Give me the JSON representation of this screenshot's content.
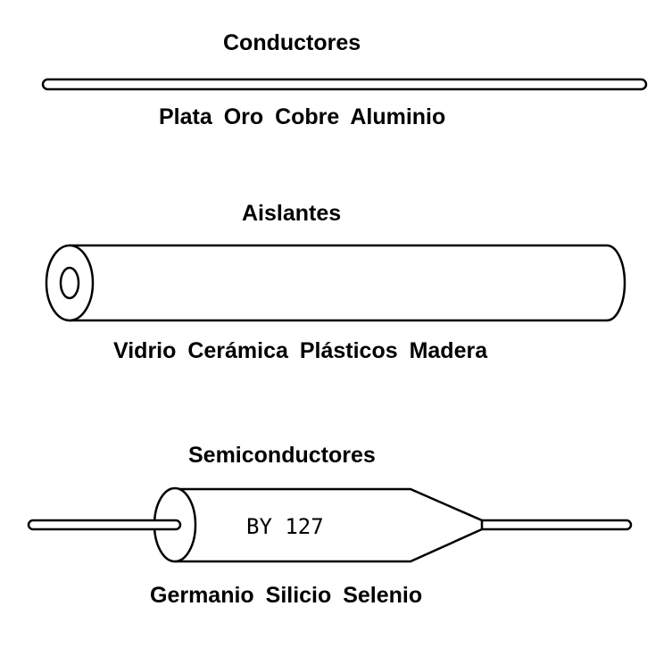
{
  "conductors": {
    "heading": "Conductores",
    "materials": "Plata Oro Cobre Aluminio",
    "icon": "thin-wire-icon"
  },
  "insulators": {
    "heading": "Aislantes",
    "materials": "Vidrio Cerámica Plásticos Madera",
    "icon": "insulating-rod-icon"
  },
  "semiconductors": {
    "heading": "Semiconductores",
    "materials": "Germanio Silicio Selenio",
    "component_label": "BY 127",
    "icon": "diode-icon"
  },
  "colors": {
    "ink": "#000000",
    "background": "#ffffff"
  }
}
